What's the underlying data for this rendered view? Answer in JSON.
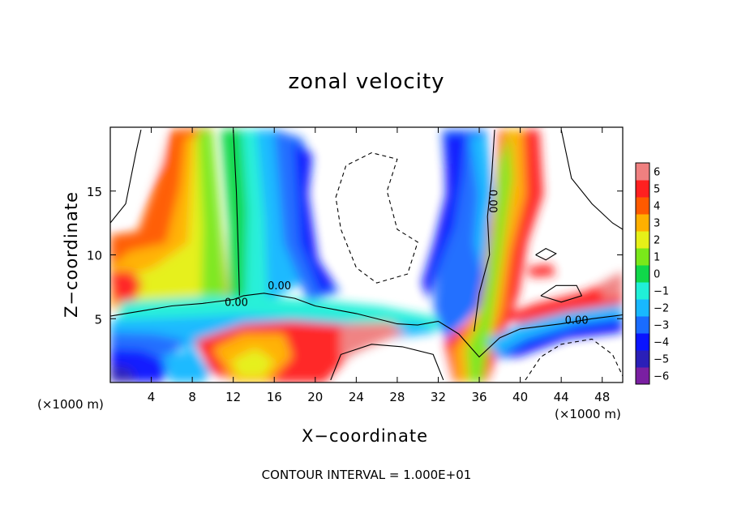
{
  "chart_data": {
    "type": "heatmap",
    "title": "zonal velocity",
    "xlabel": "X−coordinate",
    "ylabel": "Z−coordinate",
    "x_unit": "(×1000 m)",
    "footer": "CONTOUR INTERVAL = 1.000E+01",
    "xlim": [
      0,
      50
    ],
    "ylim": [
      0,
      20
    ],
    "x_ticks": [
      4,
      8,
      12,
      16,
      20,
      24,
      28,
      32,
      36,
      40,
      44,
      48
    ],
    "x_tick_labels": [
      "4",
      "8",
      "12",
      "16",
      "20",
      "24",
      "28",
      "32",
      "36",
      "40",
      "44",
      "48"
    ],
    "y_ticks": [
      5,
      10,
      15
    ],
    "y_tick_labels": [
      "5",
      "10",
      "15"
    ],
    "colorbar": {
      "levels": [
        -6,
        -5,
        -4,
        -3,
        -2,
        -1,
        0,
        1,
        2,
        3,
        4,
        5,
        6
      ],
      "labels": [
        "−6",
        "−5",
        "−4",
        "−3",
        "−2",
        "−1",
        "0",
        "1",
        "2",
        "3",
        "4",
        "5",
        "6"
      ],
      "colors": [
        "#7a1fa2",
        "#2a1fb8",
        "#0a14ff",
        "#1a6cff",
        "#18b8ff",
        "#20f0d8",
        "#10d84a",
        "#7ae81a",
        "#e6f018",
        "#ffb000",
        "#ff5a00",
        "#ff2020",
        "#f08080"
      ]
    },
    "contours": [
      {
        "level": 0.0,
        "label": "0.00",
        "style": "solid",
        "points": [
          [
            0,
            5.2
          ],
          [
            3,
            5.6
          ],
          [
            6,
            6.0
          ],
          [
            9,
            6.2
          ],
          [
            12,
            6.5
          ],
          [
            13,
            6.8
          ],
          [
            15,
            7.0
          ],
          [
            18,
            6.6
          ],
          [
            20,
            6.0
          ],
          [
            24,
            5.4
          ],
          [
            28,
            4.6
          ],
          [
            30,
            4.5
          ],
          [
            32,
            4.8
          ],
          [
            34,
            3.8
          ],
          [
            36,
            2.0
          ],
          [
            38,
            3.5
          ],
          [
            40,
            4.2
          ],
          [
            44,
            4.6
          ],
          [
            47,
            5.0
          ],
          [
            50,
            5.3
          ]
        ]
      },
      {
        "level": 0.0,
        "label": "",
        "style": "solid",
        "points": [
          [
            12,
            19.8
          ],
          [
            12.3,
            15
          ],
          [
            12.5,
            10
          ],
          [
            12.6,
            6.8
          ]
        ]
      },
      {
        "level": 0.0,
        "label": "0.00",
        "style": "solid",
        "points": [
          [
            37.5,
            19.8
          ],
          [
            37.2,
            16
          ],
          [
            36.8,
            13
          ],
          [
            37.0,
            10
          ],
          [
            36.0,
            7
          ],
          [
            35.5,
            4.0
          ]
        ]
      },
      {
        "level": 0.0,
        "label": "",
        "style": "solid",
        "points": [
          [
            0,
            12.5
          ],
          [
            1.5,
            14
          ],
          [
            2.0,
            16
          ],
          [
            2.5,
            18
          ],
          [
            3.0,
            19.8
          ]
        ]
      },
      {
        "level": 0.0,
        "label": "",
        "style": "solid",
        "points": [
          [
            44,
            19.8
          ],
          [
            45,
            16
          ],
          [
            47,
            14
          ],
          [
            49,
            12.5
          ],
          [
            50,
            12
          ]
        ]
      },
      {
        "level": -10.0,
        "label": "",
        "style": "dashed",
        "points": [
          [
            22,
            14.5
          ],
          [
            23,
            17
          ],
          [
            25.5,
            18
          ],
          [
            28,
            17.5
          ],
          [
            27,
            15
          ],
          [
            28,
            12
          ],
          [
            30,
            11
          ],
          [
            29,
            8.5
          ],
          [
            26,
            7.8
          ],
          [
            24,
            9
          ],
          [
            22.5,
            12
          ],
          [
            22,
            14.5
          ]
        ]
      },
      {
        "level": -10.0,
        "label": "",
        "style": "dashed",
        "points": [
          [
            40.5,
            0.2
          ],
          [
            42,
            2.0
          ],
          [
            44,
            3.0
          ],
          [
            47,
            3.4
          ],
          [
            49,
            2.2
          ],
          [
            50,
            0.5
          ]
        ]
      },
      {
        "level": 10.0,
        "label": "",
        "style": "solid",
        "points": [
          [
            42,
            6.8
          ],
          [
            43.5,
            7.6
          ],
          [
            45.5,
            7.6
          ],
          [
            46,
            6.8
          ],
          [
            44,
            6.3
          ],
          [
            42,
            6.8
          ]
        ]
      },
      {
        "level": 10.0,
        "label": "",
        "style": "solid",
        "points": [
          [
            41.5,
            10.0
          ],
          [
            42.5,
            10.5
          ],
          [
            43.5,
            10.1
          ],
          [
            42.5,
            9.6
          ],
          [
            41.5,
            10.0
          ]
        ]
      },
      {
        "level": 10.0,
        "label": "",
        "style": "solid",
        "points": [
          [
            21.5,
            0.2
          ],
          [
            22.5,
            2.2
          ],
          [
            25.5,
            3.0
          ],
          [
            28.5,
            2.8
          ],
          [
            31.5,
            2.2
          ],
          [
            32.5,
            0.2
          ]
        ]
      }
    ]
  }
}
